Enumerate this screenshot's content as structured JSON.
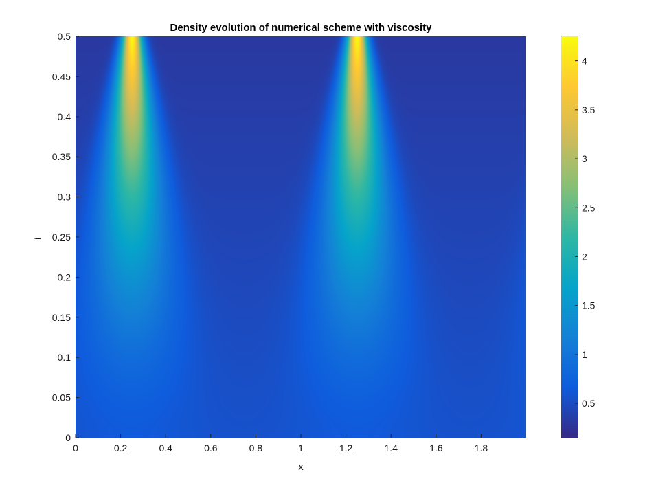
{
  "chart_data": {
    "type": "heatmap",
    "title": "Density evolution of numerical scheme with viscosity",
    "xlabel": "x",
    "ylabel": "t",
    "xlim": [
      0,
      2
    ],
    "ylim": [
      0,
      0.5
    ],
    "x_ticks": [
      "0",
      "0.2",
      "0.4",
      "0.6",
      "0.8",
      "1",
      "1.2",
      "1.4",
      "1.6",
      "1.8"
    ],
    "y_ticks": [
      "0",
      "0.05",
      "0.1",
      "0.15",
      "0.2",
      "0.25",
      "0.3",
      "0.35",
      "0.4",
      "0.45",
      "0.5"
    ],
    "colormap": "parula",
    "color_range": [
      0.15,
      4.25
    ],
    "colorbar_ticks": [
      "0.5",
      "1",
      "1.5",
      "2",
      "2.5",
      "3",
      "3.5",
      "4"
    ],
    "peaks": [
      {
        "x": 0.25,
        "value_at_t0": 0.65,
        "value_at_tmax": 4.25
      },
      {
        "x": 1.25,
        "value_at_t0": 0.65,
        "value_at_tmax": 4.25
      }
    ],
    "background_value_at_t0": 0.55,
    "background_value_at_tmax": 0.3,
    "grid": false,
    "colors": [
      "#352a87",
      "#0f5cdd",
      "#1481d6",
      "#06a4ca",
      "#2eb7a4",
      "#87bf77",
      "#d1bb59",
      "#fec832",
      "#f9fb0e"
    ]
  }
}
